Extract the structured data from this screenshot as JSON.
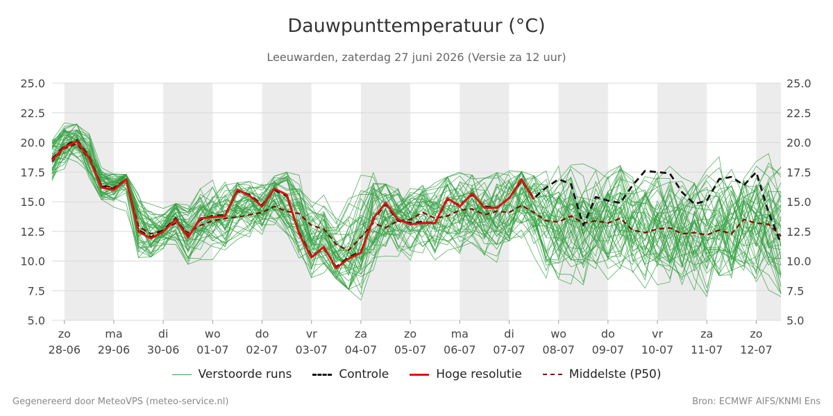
{
  "chart_data": {
    "type": "line",
    "title": "Dauwpunttemperatuur (°C)",
    "subtitle": "Leeuwarden, zaterdag 27 juni 2026 (Versie za 12 uur)",
    "ylim": [
      5,
      25
    ],
    "yticks": [
      "5.0",
      "7.5",
      "10.0",
      "12.5",
      "15.0",
      "17.5",
      "20.0",
      "22.5",
      "25.0"
    ],
    "x_range_days": [
      -0.25,
      14.5
    ],
    "day_labels": [
      {
        "day": "zo",
        "date": "28-06"
      },
      {
        "day": "ma",
        "date": "29-06"
      },
      {
        "day": "di",
        "date": "30-06"
      },
      {
        "day": "wo",
        "date": "01-07"
      },
      {
        "day": "do",
        "date": "02-07"
      },
      {
        "day": "vr",
        "date": "03-07"
      },
      {
        "day": "za",
        "date": "04-07"
      },
      {
        "day": "zo",
        "date": "05-07"
      },
      {
        "day": "ma",
        "date": "06-07"
      },
      {
        "day": "di",
        "date": "07-07"
      },
      {
        "day": "wo",
        "date": "08-07"
      },
      {
        "day": "do",
        "date": "09-07"
      },
      {
        "day": "vr",
        "date": "10-07"
      },
      {
        "day": "za",
        "date": "11-07"
      },
      {
        "day": "zo",
        "date": "12-07"
      }
    ],
    "shaded_days": [
      0,
      2,
      4,
      6,
      8,
      10,
      12,
      14
    ],
    "grid": true,
    "legend_position": "bottom",
    "colors": {
      "ensemble": "#33a041",
      "control": "#111111",
      "hires": "#dd1111",
      "median": "#8b0000",
      "shade": "#ececec",
      "grid": "#d8d8d8"
    },
    "series": [
      {
        "name": "Hoge resolutie",
        "style": "solid",
        "x": [
          -0.25,
          0,
          0.25,
          0.5,
          0.75,
          1,
          1.25,
          1.5,
          1.75,
          2,
          2.25,
          2.5,
          2.75,
          3,
          3.25,
          3.5,
          3.75,
          4,
          4.25,
          4.5,
          4.75,
          5,
          5.25,
          5.5,
          5.75,
          6,
          6.25,
          6.5,
          6.75,
          7,
          7.25,
          7.5,
          7.75,
          8,
          8.25,
          8.5,
          8.75,
          9,
          9.25,
          9.5
        ],
        "y": [
          18.5,
          19.6,
          20.1,
          18.7,
          16.2,
          16.0,
          16.9,
          12.5,
          11.9,
          12.5,
          13.5,
          12.0,
          13.6,
          13.7,
          13.8,
          16.0,
          15.5,
          14.6,
          16.1,
          15.6,
          12.3,
          10.3,
          11.2,
          9.4,
          10.2,
          10.7,
          13.6,
          14.9,
          13.5,
          13.1,
          13.2,
          13.2,
          15.3,
          14.6,
          15.7,
          14.5,
          14.5,
          15.3,
          16.9,
          15.2
        ]
      },
      {
        "name": "Controle",
        "style": "dashed",
        "x": [
          -0.25,
          0,
          0.25,
          0.5,
          0.75,
          1,
          1.25,
          1.5,
          1.75,
          2,
          2.25,
          2.5,
          2.75,
          3,
          3.25,
          3.5,
          3.75,
          4,
          4.25,
          4.5,
          4.75,
          5,
          5.25,
          5.5,
          5.75,
          6,
          6.25,
          6.5,
          6.75,
          7,
          7.25,
          7.5,
          7.75,
          8,
          8.25,
          8.5,
          8.75,
          9,
          9.25,
          9.5,
          9.75,
          10,
          10.25,
          10.5,
          10.75,
          11,
          11.25,
          11.5,
          11.75,
          12,
          12.25,
          12.5,
          12.75,
          13,
          13.25,
          13.5,
          13.75,
          14,
          14.25,
          14.5
        ],
        "y": [
          18.6,
          19.7,
          20.2,
          18.8,
          16.3,
          16.1,
          16.9,
          12.6,
          12.0,
          12.6,
          13.6,
          12.1,
          13.5,
          13.8,
          13.9,
          15.9,
          15.6,
          14.7,
          16.0,
          15.5,
          12.4,
          10.4,
          11.1,
          9.5,
          10.3,
          10.8,
          13.5,
          14.8,
          13.4,
          13.2,
          13.3,
          13.2,
          15.2,
          14.7,
          15.6,
          14.6,
          14.5,
          15.3,
          16.8,
          15.3,
          16.2,
          16.9,
          16.5,
          13.0,
          15.4,
          15.1,
          14.9,
          16.4,
          17.6,
          17.5,
          17.4,
          15.8,
          14.8,
          15.1,
          16.9,
          17.1,
          16.4,
          17.5,
          14.1,
          11.5
        ]
      },
      {
        "name": "Middelste (P50)",
        "style": "dashed",
        "x": [
          -0.25,
          0,
          0.25,
          0.5,
          0.75,
          1,
          1.25,
          1.5,
          1.75,
          2,
          2.25,
          2.5,
          2.75,
          3,
          3.25,
          3.5,
          3.75,
          4,
          4.25,
          4.5,
          4.75,
          5,
          5.25,
          5.5,
          5.75,
          6,
          6.25,
          6.5,
          6.75,
          7,
          7.25,
          7.5,
          7.75,
          8,
          8.25,
          8.5,
          8.75,
          9,
          9.25,
          9.5,
          9.75,
          10,
          10.25,
          10.5,
          10.75,
          11,
          11.25,
          11.5,
          11.75,
          12,
          12.25,
          12.5,
          12.75,
          13,
          13.25,
          13.5,
          13.75,
          14,
          14.25,
          14.5
        ],
        "y": [
          18.4,
          19.5,
          19.9,
          18.6,
          16.4,
          16.2,
          16.8,
          12.9,
          12.3,
          12.6,
          13.2,
          12.4,
          13.0,
          13.4,
          13.6,
          13.7,
          13.9,
          14.1,
          14.6,
          14.2,
          14.0,
          13.0,
          12.7,
          11.4,
          10.9,
          12.0,
          13.2,
          12.8,
          13.4,
          13.5,
          14.1,
          13.6,
          13.8,
          14.3,
          14.4,
          13.9,
          14.2,
          14.1,
          14.7,
          14.1,
          13.4,
          13.3,
          13.8,
          13.2,
          13.4,
          13.2,
          13.6,
          12.6,
          12.4,
          12.7,
          12.8,
          12.3,
          12.4,
          12.2,
          12.6,
          12.3,
          13.5,
          13.2,
          13.1,
          12.1
        ]
      },
      {
        "name": "Verstoorde runs",
        "style": "thin",
        "members": 50,
        "spread": [
          {
            "x": -0.25,
            "min": 15.3,
            "max": 21.2
          },
          {
            "x": 0,
            "min": 17.0,
            "max": 21.8
          },
          {
            "x": 0.5,
            "min": 16.2,
            "max": 21.3
          },
          {
            "x": 1,
            "min": 14.2,
            "max": 17.4
          },
          {
            "x": 1.5,
            "min": 10.3,
            "max": 17.2
          },
          {
            "x": 2,
            "min": 10.4,
            "max": 14.5
          },
          {
            "x": 2.5,
            "min": 9.5,
            "max": 15.2
          },
          {
            "x": 3,
            "min": 10.0,
            "max": 17.0
          },
          {
            "x": 3.5,
            "min": 9.8,
            "max": 16.6
          },
          {
            "x": 4,
            "min": 11.0,
            "max": 16.8
          },
          {
            "x": 4.5,
            "min": 10.8,
            "max": 17.5
          },
          {
            "x": 5,
            "min": 8.6,
            "max": 17.3
          },
          {
            "x": 5.5,
            "min": 8.5,
            "max": 15.5
          },
          {
            "x": 6,
            "min": 6.7,
            "max": 18.4
          },
          {
            "x": 6.5,
            "min": 8.0,
            "max": 16.5
          },
          {
            "x": 7,
            "min": 8.3,
            "max": 16.3
          },
          {
            "x": 7.5,
            "min": 8.9,
            "max": 16.7
          },
          {
            "x": 8,
            "min": 8.4,
            "max": 17.5
          },
          {
            "x": 8.5,
            "min": 8.6,
            "max": 17.0
          },
          {
            "x": 9,
            "min": 8.9,
            "max": 17.9
          },
          {
            "x": 9.5,
            "min": 7.5,
            "max": 17.2
          },
          {
            "x": 10,
            "min": 6.7,
            "max": 18.0
          },
          {
            "x": 10.5,
            "min": 7.0,
            "max": 18.2
          },
          {
            "x": 11,
            "min": 6.0,
            "max": 17.5
          },
          {
            "x": 11.5,
            "min": 7.0,
            "max": 18.6
          },
          {
            "x": 12,
            "min": 6.3,
            "max": 17.8
          },
          {
            "x": 12.5,
            "min": 6.7,
            "max": 18.2
          },
          {
            "x": 13,
            "min": 7.0,
            "max": 19.5
          },
          {
            "x": 13.5,
            "min": 6.8,
            "max": 19.3
          },
          {
            "x": 14,
            "min": 6.8,
            "max": 19.3
          },
          {
            "x": 14.5,
            "min": 7.0,
            "max": 20.1
          }
        ]
      }
    ]
  },
  "legend": {
    "ensemble": "Verstoorde runs",
    "control": "Controle",
    "hires": "Hoge resolutie",
    "median": "Middelste (P50)"
  },
  "footer": {
    "left": "Gegenereerd door MeteoVPS (meteo-service.nl)",
    "right": "Bron: ECMWF AIFS/KNMI Ens"
  }
}
